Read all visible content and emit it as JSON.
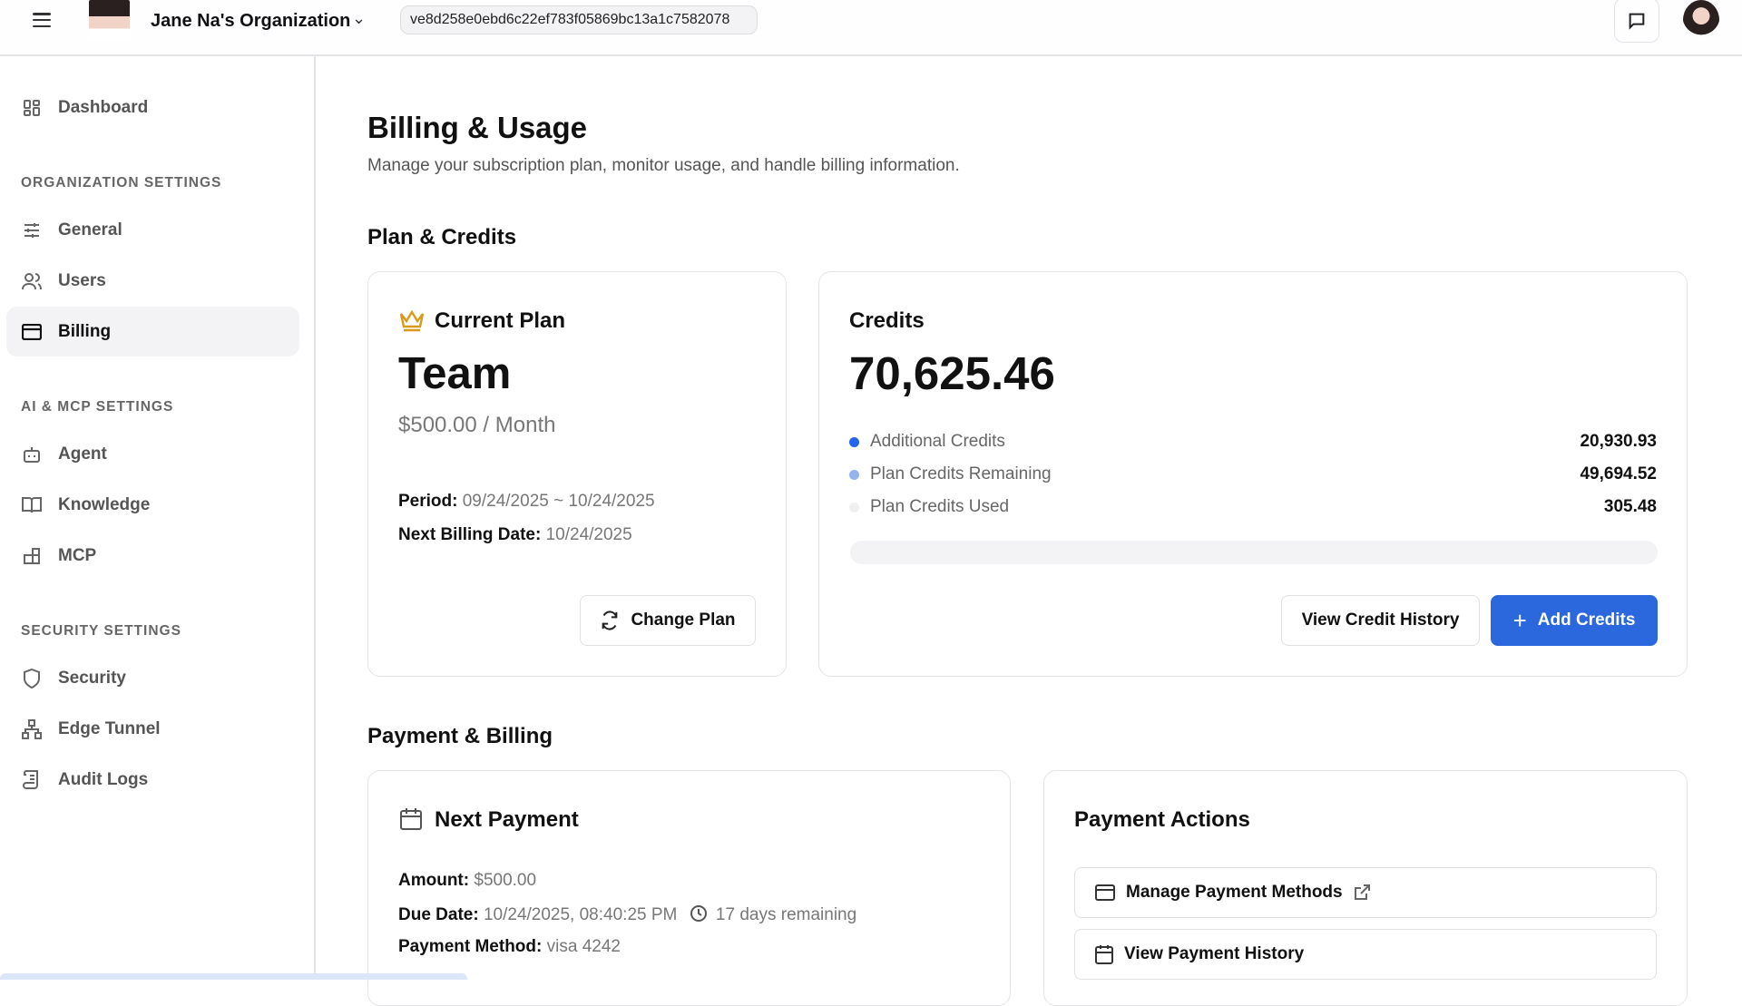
{
  "header": {
    "org_name": "Jane Na's Organization",
    "org_id": "ve8d258e0ebd6c22ef783f05869bc13a1c7582078"
  },
  "sidebar": {
    "dashboard": "Dashboard",
    "groups": [
      {
        "title": "ORGANIZATION SETTINGS",
        "items": [
          "General",
          "Users",
          "Billing"
        ]
      },
      {
        "title": "AI & MCP SETTINGS",
        "items": [
          "Agent",
          "Knowledge",
          "MCP"
        ]
      },
      {
        "title": "SECURITY SETTINGS",
        "items": [
          "Security",
          "Edge Tunnel",
          "Audit Logs"
        ]
      }
    ],
    "active": "Billing"
  },
  "page": {
    "title": "Billing & Usage",
    "subtitle": "Manage your subscription plan, monitor usage, and handle billing information."
  },
  "plan_section": {
    "title": "Plan & Credits"
  },
  "plan": {
    "heading": "Current Plan",
    "name": "Team",
    "price": "$500.00 / Month",
    "period_label": "Period:",
    "period": "09/24/2025 ~ 10/24/2025",
    "next_label": "Next Billing Date:",
    "next": "10/24/2025",
    "change_button": "Change Plan"
  },
  "credits": {
    "heading": "Credits",
    "total": "70,625.46",
    "items": [
      {
        "label": "Additional Credits",
        "value": "20,930.93",
        "color": "#2563eb"
      },
      {
        "label": "Plan Credits Remaining",
        "value": "49,694.52",
        "color": "#93b4ee"
      },
      {
        "label": "Plan Credits Used",
        "value": "305.48",
        "color": "#f0f0f2"
      }
    ],
    "history_button": "View Credit History",
    "add_button": "Add Credits"
  },
  "payment_section": {
    "title": "Payment & Billing"
  },
  "next_payment": {
    "heading": "Next Payment",
    "amount_label": "Amount:",
    "amount": "$500.00",
    "due_label": "Due Date:",
    "due": "10/24/2025, 08:40:25 PM",
    "remaining": "17 days remaining",
    "method_label": "Payment Method:",
    "method": "visa 4242"
  },
  "actions": {
    "heading": "Payment Actions",
    "manage": "Manage Payment Methods",
    "history": "View Payment History"
  },
  "colors": {
    "accent": "#2b67dd",
    "crown": "#d99a1a"
  }
}
